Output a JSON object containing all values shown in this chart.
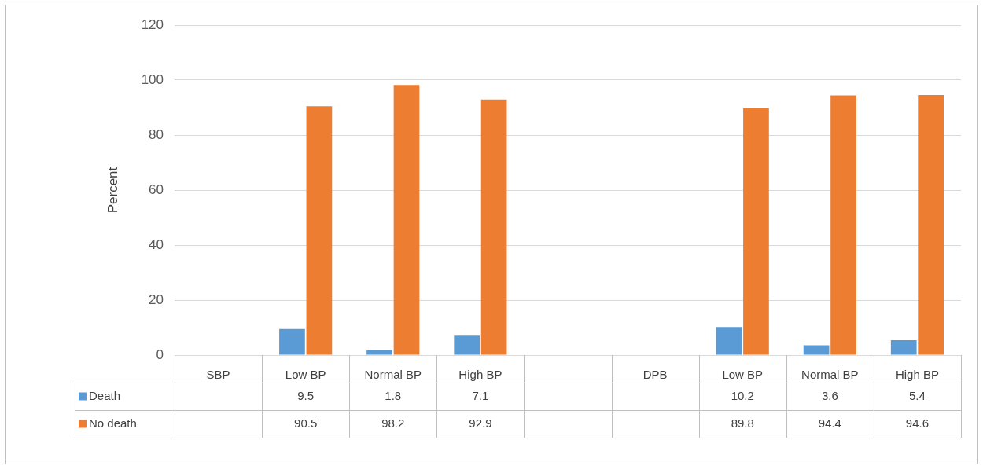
{
  "chart_data": {
    "type": "bar",
    "ylabel": "Percent",
    "categories": [
      "SBP",
      "Low BP",
      "Normal BP",
      "High BP",
      null,
      "DPB",
      "Low BP",
      "Normal BP",
      "High BP"
    ],
    "series": [
      {
        "name": "Death",
        "color": "#5b9bd5",
        "values": [
          null,
          9.5,
          1.8,
          7.1,
          null,
          null,
          10.2,
          3.6,
          5.4
        ]
      },
      {
        "name": "No death",
        "color": "#ed7d31",
        "values": [
          null,
          90.5,
          98.2,
          92.9,
          null,
          null,
          89.8,
          94.4,
          94.6
        ]
      }
    ],
    "ylim": [
      0,
      120
    ],
    "yticks": [
      0,
      20,
      40,
      60,
      80,
      100,
      120
    ],
    "grid": "y",
    "legend": "bottom",
    "data_labels": true
  }
}
